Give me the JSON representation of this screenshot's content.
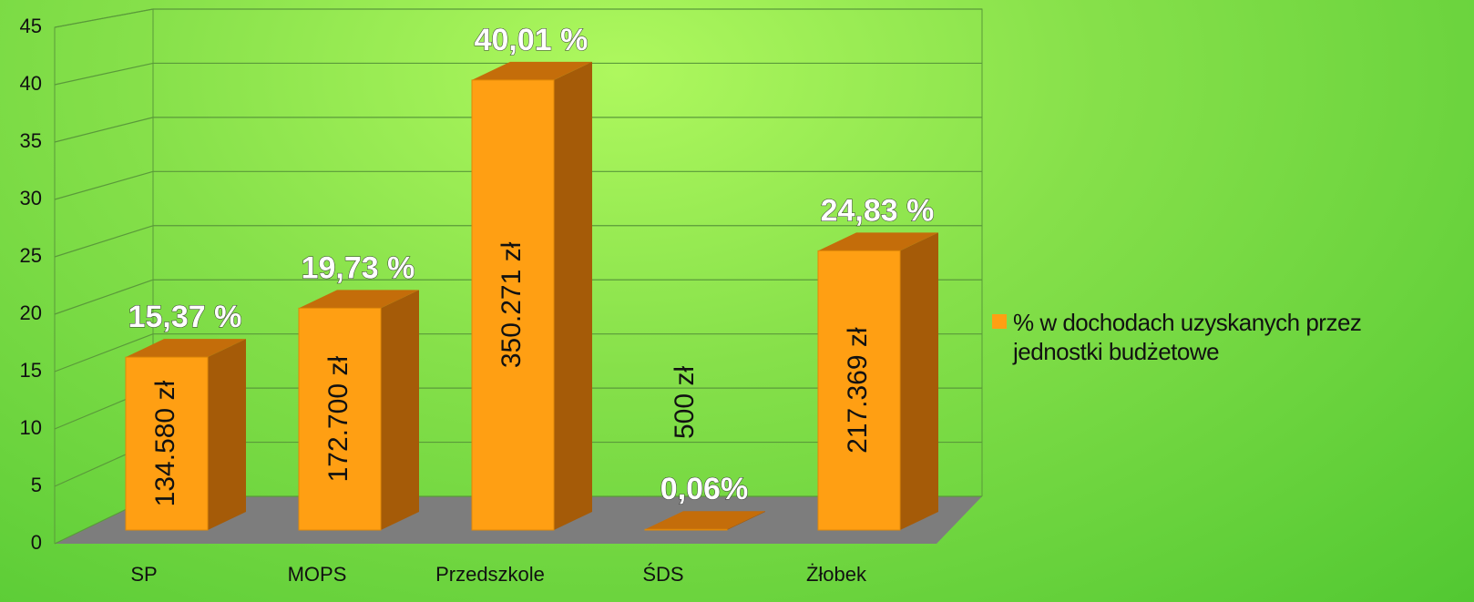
{
  "chart_data": {
    "type": "bar3d",
    "categories": [
      "SP",
      "MOPS",
      "Przedszkole",
      "ŚDS",
      "Żłobek"
    ],
    "series": [
      {
        "name": "% w dochodach uzyskanych przez jednostki budżetowe",
        "color": "#ff9f13",
        "values": [
          15.37,
          19.73,
          40.01,
          0.06,
          24.83
        ],
        "value_labels": [
          "15,37 %",
          "19,73 %",
          "40,01 %",
          "0,06%",
          "24,83 %"
        ],
        "amount_labels": [
          "134.580 zł",
          "172.700 zł",
          "350.271 zł",
          "500 zł",
          "217.369 zł"
        ]
      }
    ],
    "ylim": [
      0,
      45
    ],
    "yticks": [
      0,
      5,
      10,
      15,
      20,
      25,
      30,
      35,
      40,
      45
    ],
    "grid": true,
    "legend": "right"
  }
}
